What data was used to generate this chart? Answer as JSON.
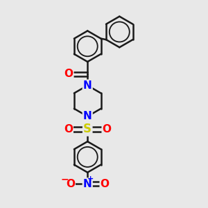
{
  "bg_color": "#e8e8e8",
  "bond_color": "#1a1a1a",
  "bond_width": 1.8,
  "atom_colors": {
    "O": "#ff0000",
    "N": "#0000ff",
    "S": "#cccc00",
    "C": "#1a1a1a"
  },
  "figsize": [
    3.0,
    3.0
  ],
  "dpi": 100,
  "xlim": [
    0,
    10
  ],
  "ylim": [
    0,
    10
  ]
}
